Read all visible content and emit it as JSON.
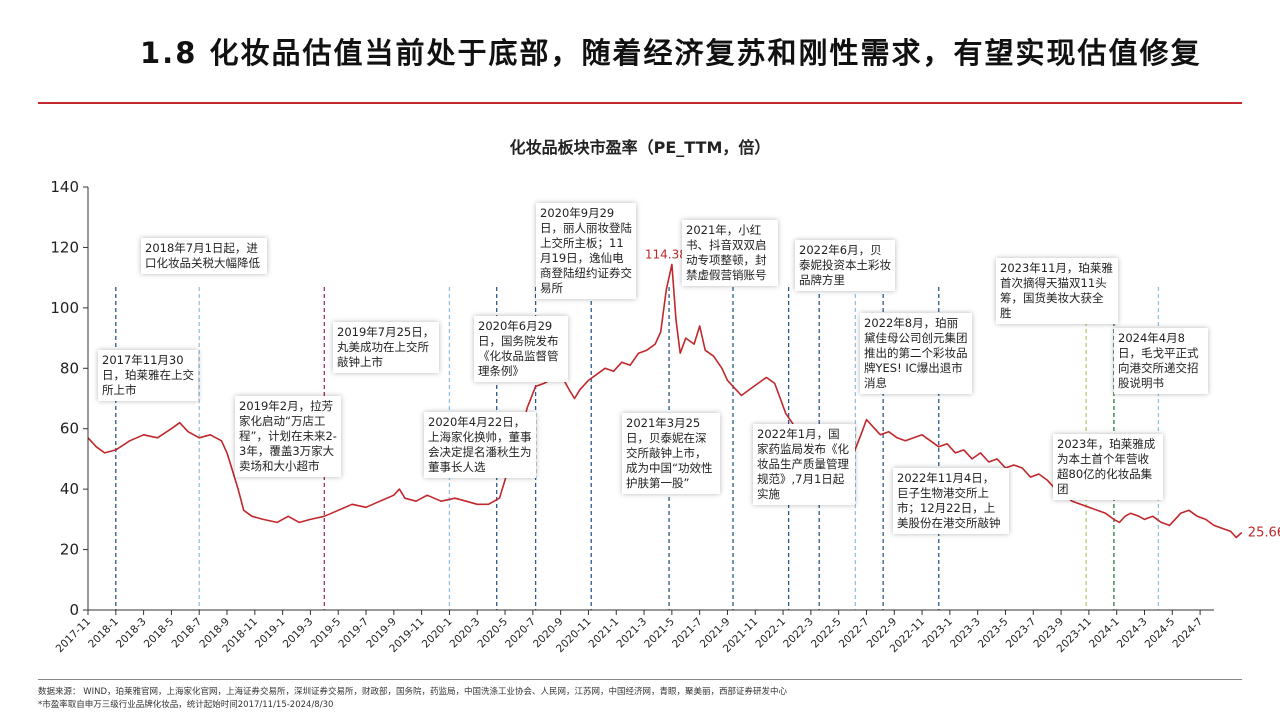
{
  "slide": {
    "title": "1.8 化妆品估值当前处于底部，随着经济复苏和刚性需求，有望实现估值修复"
  },
  "chart_data": {
    "type": "line",
    "title": "化妆品板块市盈率（PE_TTM，倍）",
    "ylim": [
      0,
      140
    ],
    "yticks": [
      0,
      20,
      40,
      60,
      80,
      100,
      120,
      140
    ],
    "x_tick_labels": [
      "2017-11",
      "2018-1",
      "2018-3",
      "2018-5",
      "2018-7",
      "2018-9",
      "2018-11",
      "2019-1",
      "2019-3",
      "2019-5",
      "2019-7",
      "2019-9",
      "2019-11",
      "2020-1",
      "2020-3",
      "2020-5",
      "2020-7",
      "2020-9",
      "2020-11",
      "2021-1",
      "2021-3",
      "2021-5",
      "2021-7",
      "2021-9",
      "2021-11",
      "2022-1",
      "2022-3",
      "2022-5",
      "2022-7",
      "2022-9",
      "2022-11",
      "2023-1",
      "2023-3",
      "2023-5",
      "2023-7",
      "2023-9",
      "2023-11",
      "2024-1",
      "2024-3",
      "2024-5",
      "2024-7"
    ],
    "series": [
      {
        "name": "化妆品板块市盈率",
        "color": "#c0282d",
        "points": [
          [
            0,
            57
          ],
          [
            0.3,
            54
          ],
          [
            0.6,
            52
          ],
          [
            1,
            53
          ],
          [
            1.5,
            56
          ],
          [
            2,
            58
          ],
          [
            2.5,
            57
          ],
          [
            3,
            60
          ],
          [
            3.3,
            62
          ],
          [
            3.6,
            59
          ],
          [
            4,
            57
          ],
          [
            4.4,
            58
          ],
          [
            4.8,
            56
          ],
          [
            5,
            52
          ],
          [
            5.2,
            46
          ],
          [
            5.4,
            40
          ],
          [
            5.6,
            33
          ],
          [
            5.9,
            31
          ],
          [
            6.3,
            30
          ],
          [
            6.8,
            29
          ],
          [
            7.2,
            31
          ],
          [
            7.6,
            29
          ],
          [
            8,
            30
          ],
          [
            8.5,
            31
          ],
          [
            9,
            33
          ],
          [
            9.5,
            35
          ],
          [
            10,
            34
          ],
          [
            10.5,
            36
          ],
          [
            11,
            38
          ],
          [
            11.2,
            40
          ],
          [
            11.4,
            37
          ],
          [
            11.8,
            36
          ],
          [
            12.2,
            38
          ],
          [
            12.7,
            36
          ],
          [
            13.2,
            37
          ],
          [
            13.6,
            36
          ],
          [
            14,
            35
          ],
          [
            14.4,
            35
          ],
          [
            14.8,
            37
          ],
          [
            15,
            43
          ],
          [
            15.3,
            52
          ],
          [
            15.6,
            60
          ],
          [
            15.8,
            67
          ],
          [
            16.1,
            74
          ],
          [
            16.4,
            75
          ],
          [
            16.8,
            77
          ],
          [
            17,
            78
          ],
          [
            17.3,
            73
          ],
          [
            17.5,
            70
          ],
          [
            17.7,
            73
          ],
          [
            18,
            76
          ],
          [
            18.3,
            78
          ],
          [
            18.6,
            80
          ],
          [
            18.9,
            79
          ],
          [
            19.2,
            82
          ],
          [
            19.5,
            81
          ],
          [
            19.8,
            85
          ],
          [
            20.1,
            86
          ],
          [
            20.4,
            88
          ],
          [
            20.6,
            92
          ],
          [
            20.8,
            106
          ],
          [
            21,
            114.38
          ],
          [
            21.15,
            96
          ],
          [
            21.3,
            85
          ],
          [
            21.5,
            90
          ],
          [
            21.8,
            88
          ],
          [
            22,
            94
          ],
          [
            22.2,
            86
          ],
          [
            22.5,
            84
          ],
          [
            22.8,
            80
          ],
          [
            23,
            76
          ],
          [
            23.3,
            73
          ],
          [
            23.5,
            71
          ],
          [
            23.8,
            73
          ],
          [
            24.1,
            75
          ],
          [
            24.4,
            77
          ],
          [
            24.7,
            75
          ],
          [
            24.9,
            70
          ],
          [
            25.1,
            65
          ],
          [
            25.4,
            61
          ],
          [
            25.7,
            58
          ],
          [
            26,
            56
          ],
          [
            26.3,
            54
          ],
          [
            26.6,
            55
          ],
          [
            26.9,
            52
          ],
          [
            27.2,
            50
          ],
          [
            27.5,
            51
          ],
          [
            27.8,
            58
          ],
          [
            28,
            63
          ],
          [
            28.2,
            61
          ],
          [
            28.5,
            58
          ],
          [
            28.8,
            59
          ],
          [
            29.1,
            57
          ],
          [
            29.4,
            56
          ],
          [
            29.7,
            57
          ],
          [
            30,
            58
          ],
          [
            30.3,
            56
          ],
          [
            30.6,
            54
          ],
          [
            30.9,
            55
          ],
          [
            31.2,
            52
          ],
          [
            31.5,
            53
          ],
          [
            31.8,
            50
          ],
          [
            32.1,
            52
          ],
          [
            32.4,
            49
          ],
          [
            32.7,
            50
          ],
          [
            33,
            47
          ],
          [
            33.3,
            48
          ],
          [
            33.6,
            47
          ],
          [
            33.9,
            44
          ],
          [
            34.2,
            45
          ],
          [
            34.5,
            43
          ],
          [
            34.8,
            40
          ],
          [
            35.1,
            38
          ],
          [
            35.4,
            36
          ],
          [
            35.7,
            35
          ],
          [
            36,
            34
          ],
          [
            36.3,
            33
          ],
          [
            36.6,
            32
          ],
          [
            36.9,
            30
          ],
          [
            37.1,
            29
          ],
          [
            37.3,
            31
          ],
          [
            37.5,
            32
          ],
          [
            37.8,
            31
          ],
          [
            38,
            30
          ],
          [
            38.3,
            31
          ],
          [
            38.6,
            29
          ],
          [
            38.9,
            28
          ],
          [
            39.1,
            30
          ],
          [
            39.3,
            32
          ],
          [
            39.6,
            33
          ],
          [
            39.9,
            31
          ],
          [
            40.2,
            30
          ],
          [
            40.5,
            28
          ],
          [
            40.8,
            27
          ],
          [
            41.1,
            26
          ],
          [
            41.3,
            24
          ],
          [
            41.5,
            25.66
          ]
        ],
        "last_value_label": "25.66",
        "peak_label": "114.38",
        "peak_x": 21
      }
    ],
    "event_lines": [
      {
        "x": 1,
        "color": "#2a5a8c"
      },
      {
        "x": 4,
        "color": "#8fc4e8"
      },
      {
        "x": 8.5,
        "color": "#a0306a"
      },
      {
        "x": 13,
        "color": "#8fc4e8"
      },
      {
        "x": 14.7,
        "color": "#2a5a8c"
      },
      {
        "x": 16.1,
        "color": "#2a5a8c"
      },
      {
        "x": 18.1,
        "color": "#2a5a8c"
      },
      {
        "x": 20.9,
        "color": "#2a5a8c"
      },
      {
        "x": 23.2,
        "color": "#2a5a8c"
      },
      {
        "x": 25.2,
        "color": "#2a5a8c"
      },
      {
        "x": 26.3,
        "color": "#2a5a8c"
      },
      {
        "x": 27.6,
        "color": "#8fc4e8"
      },
      {
        "x": 28.6,
        "color": "#2a5a8c"
      },
      {
        "x": 30.6,
        "color": "#2a5a8c"
      },
      {
        "x": 35.9,
        "color": "#b0d070"
      },
      {
        "x": 36.9,
        "color": "#2a7a3a"
      },
      {
        "x": 38.5,
        "color": "#8fc4e8"
      }
    ]
  },
  "annotations": [
    {
      "text": "2017年11月30日，珀莱雅在上交所上市"
    },
    {
      "text": "2018年7月1日起，进口化妆品关税大幅降低"
    },
    {
      "text": "2019年2月，拉芳家化启动“万店工程”，计划在未来2-3年，覆盖3万家大卖场和大小超市"
    },
    {
      "text": "2019年7月25日，丸美成功在上交所敲钟上市"
    },
    {
      "text": "2020年4月22日，上海家化换帅，董事会决定提名潘秋生为董事长人选"
    },
    {
      "text": "2020年6月29日，国务院发布《化妆品监督管理条例》"
    },
    {
      "text": "2020年9月29日，丽人丽妆登陆上交所主板；11月19日，逸仙电商登陆纽约证券交易所"
    },
    {
      "text": "2021年3月25日，贝泰妮在深交所敲钟上市，成为中国“功效性护肤第一股”"
    },
    {
      "text": "2021年，小红书、抖音双双启动专项整顿，封禁虚假营销账号"
    },
    {
      "text": "2022年1月，国家药监局发布《化妆品生产质量管理规范》,7月1日起实施"
    },
    {
      "text": "2022年6月，贝泰妮投资本土彩妆品牌方里"
    },
    {
      "text": "2022年8月，珀丽黛佳母公司创元集团推出的第二个彩妆品牌YES! IC爆出退市消息"
    },
    {
      "text": "2022年11月4日，巨子生物港交所上市；12月22日，上美股份在港交所敲钟"
    },
    {
      "text": "2023年11月，珀莱雅首次摘得天猫双11头筹，国货美妆大获全胜"
    },
    {
      "text": "2023年，珀莱雅成为本土首个年营收超80亿的化妆品集团"
    },
    {
      "text": "2024年4月8日，毛戈平正式向港交所递交招股说明书"
    }
  ],
  "footer": {
    "source": "数据来源： WIND，珀莱雅官网，上海家化官网，上海证券交易所，深圳证券交易所，财政部，国务院，药监局，中国洗涤工业协会、人民网，江苏网，中国经济网，青眼，聚美丽，西部证券研发中心",
    "note": "*市盈率取自申万三级行业品牌化妆品，统计起始时间2017/11/15-2024/8/30"
  }
}
